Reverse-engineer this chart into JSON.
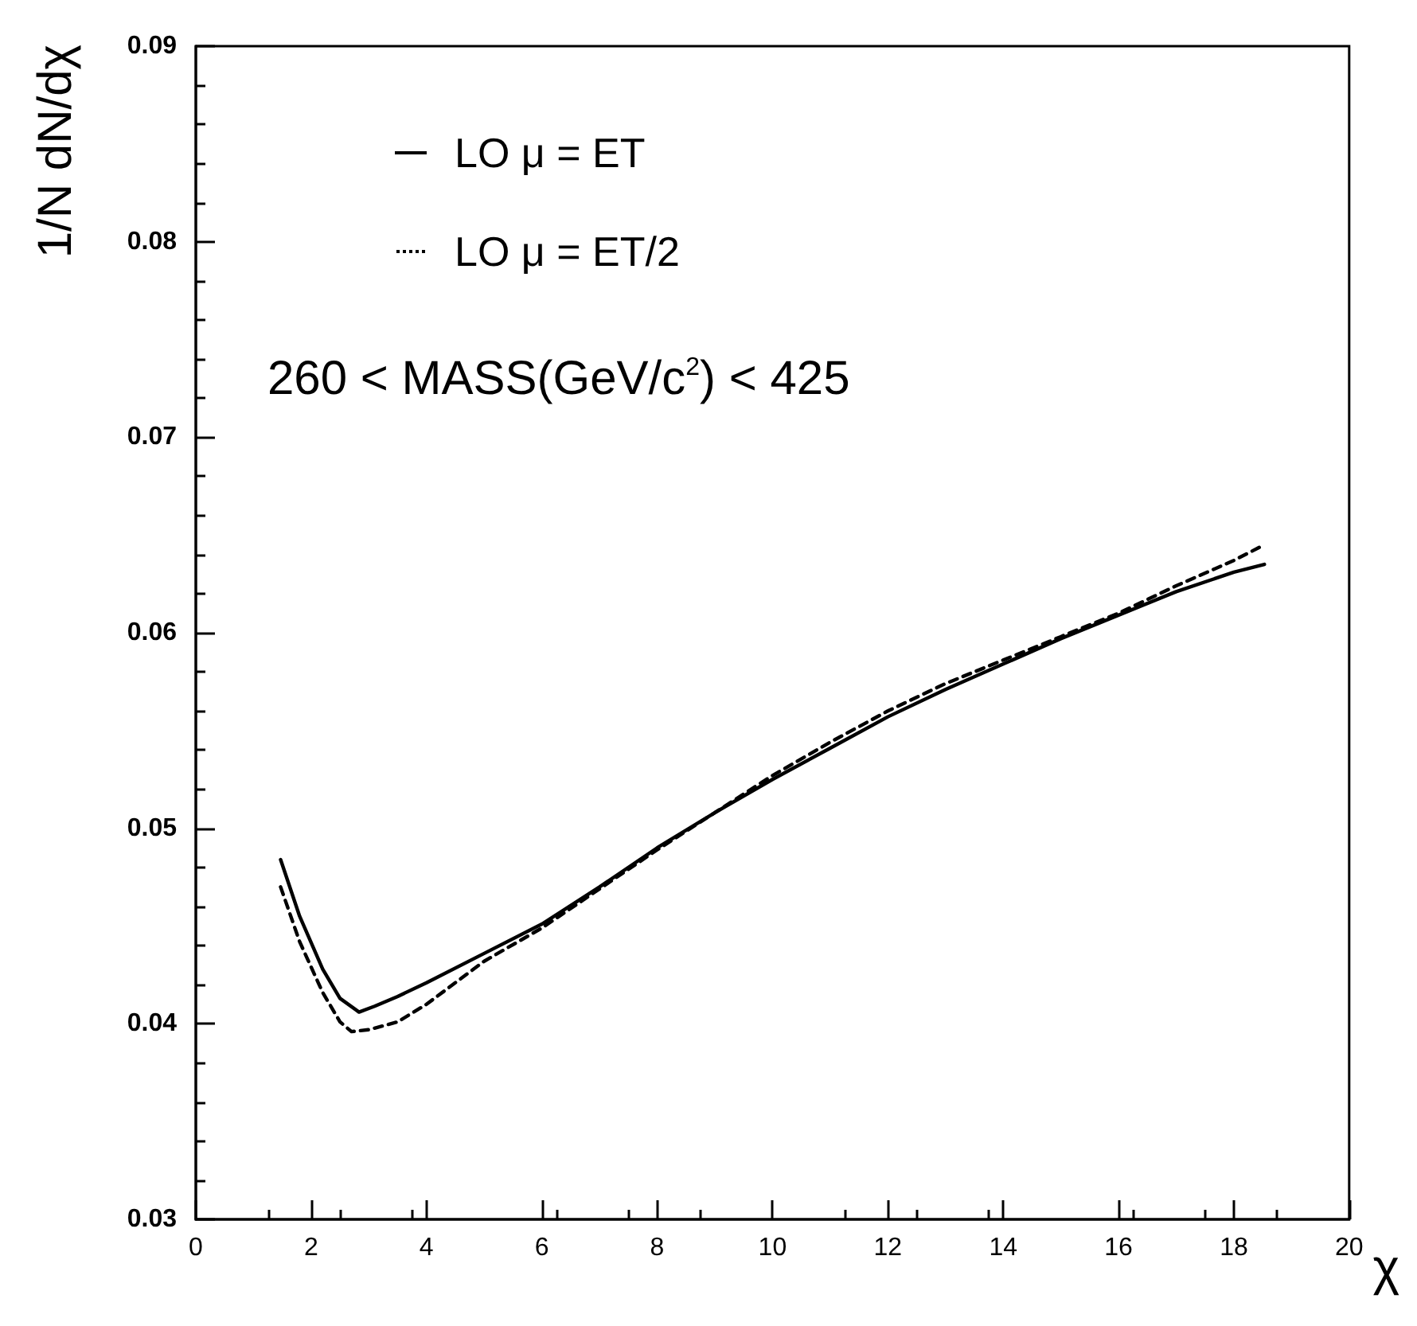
{
  "chart_data": {
    "type": "line",
    "xlabel": "χ",
    "ylabel": "1/N dN/dχ",
    "xlim": [
      0,
      20
    ],
    "xticks": [
      0,
      2,
      4,
      6,
      8,
      10,
      12,
      14,
      16,
      18,
      20
    ],
    "ylim": [
      0.03,
      0.09
    ],
    "yticks": [
      0.03,
      0.04,
      0.05,
      0.06,
      0.07,
      0.08,
      0.09
    ],
    "grid": false,
    "legend": "top left",
    "marker": "none",
    "annotations": [
      "260 < MASS(GeV/c$^{2}$) < 425"
    ],
    "series": [
      {
        "name": "LO μ = ET",
        "color": "#000000",
        "line_style": "solid",
        "x": [
          1.47,
          1.8,
          2.2,
          2.5,
          2.83,
          3.1,
          3.5,
          4,
          5,
          6,
          7,
          8,
          9,
          10,
          11,
          12,
          13,
          14,
          15,
          16,
          17,
          18,
          18.53
        ],
        "values": [
          0.0484,
          0.0455,
          0.0428,
          0.0413,
          0.0406,
          0.0409,
          0.0414,
          0.0421,
          0.0436,
          0.0451,
          0.047,
          0.049,
          0.0508,
          0.0525,
          0.0541,
          0.0557,
          0.0571,
          0.0584,
          0.0597,
          0.0609,
          0.0621,
          0.0631,
          0.0635
        ]
      },
      {
        "name": "LO μ = ET/2",
        "color": "#000000",
        "line_style": "dashed",
        "x": [
          1.47,
          1.8,
          2.2,
          2.5,
          2.7,
          3.0,
          3.5,
          4,
          5,
          6,
          7,
          8,
          9,
          10,
          11,
          12,
          13,
          14,
          15,
          16,
          17,
          18,
          18.53
        ],
        "values": [
          0.047,
          0.0442,
          0.0416,
          0.0401,
          0.0396,
          0.0397,
          0.0401,
          0.041,
          0.0432,
          0.0449,
          0.0469,
          0.0489,
          0.0508,
          0.0527,
          0.0544,
          0.056,
          0.0574,
          0.0586,
          0.0598,
          0.061,
          0.0624,
          0.0637,
          0.0645
        ]
      }
    ]
  }
}
